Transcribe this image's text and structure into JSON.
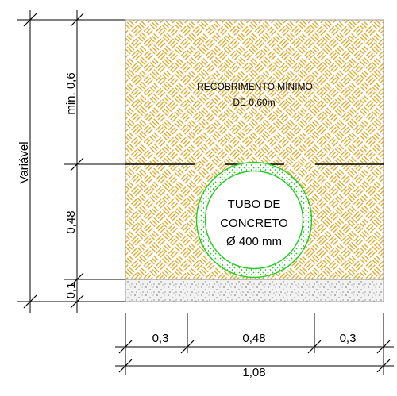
{
  "section": {
    "cover_note_line1": "RECOBRIMENTO MÍNIMO",
    "cover_note_line2": "DE 0,60m",
    "pipe_line1": "TUBO DE",
    "pipe_line2": "CONCRETO",
    "pipe_line3": "Ø 400 mm"
  },
  "dimensions": {
    "vertical_total": "Variável",
    "cover": "min. 0,6",
    "pipe_zone": "0,48",
    "bedding": "0,1",
    "left_clearance": "0,3",
    "pipe_width": "0,48",
    "right_clearance": "0,3",
    "total_width": "1,08"
  },
  "colors": {
    "fill_hatch": "#d9a520",
    "pipe": "#22cc22",
    "bedding": "#bdbdbd",
    "lines": "#000000"
  }
}
